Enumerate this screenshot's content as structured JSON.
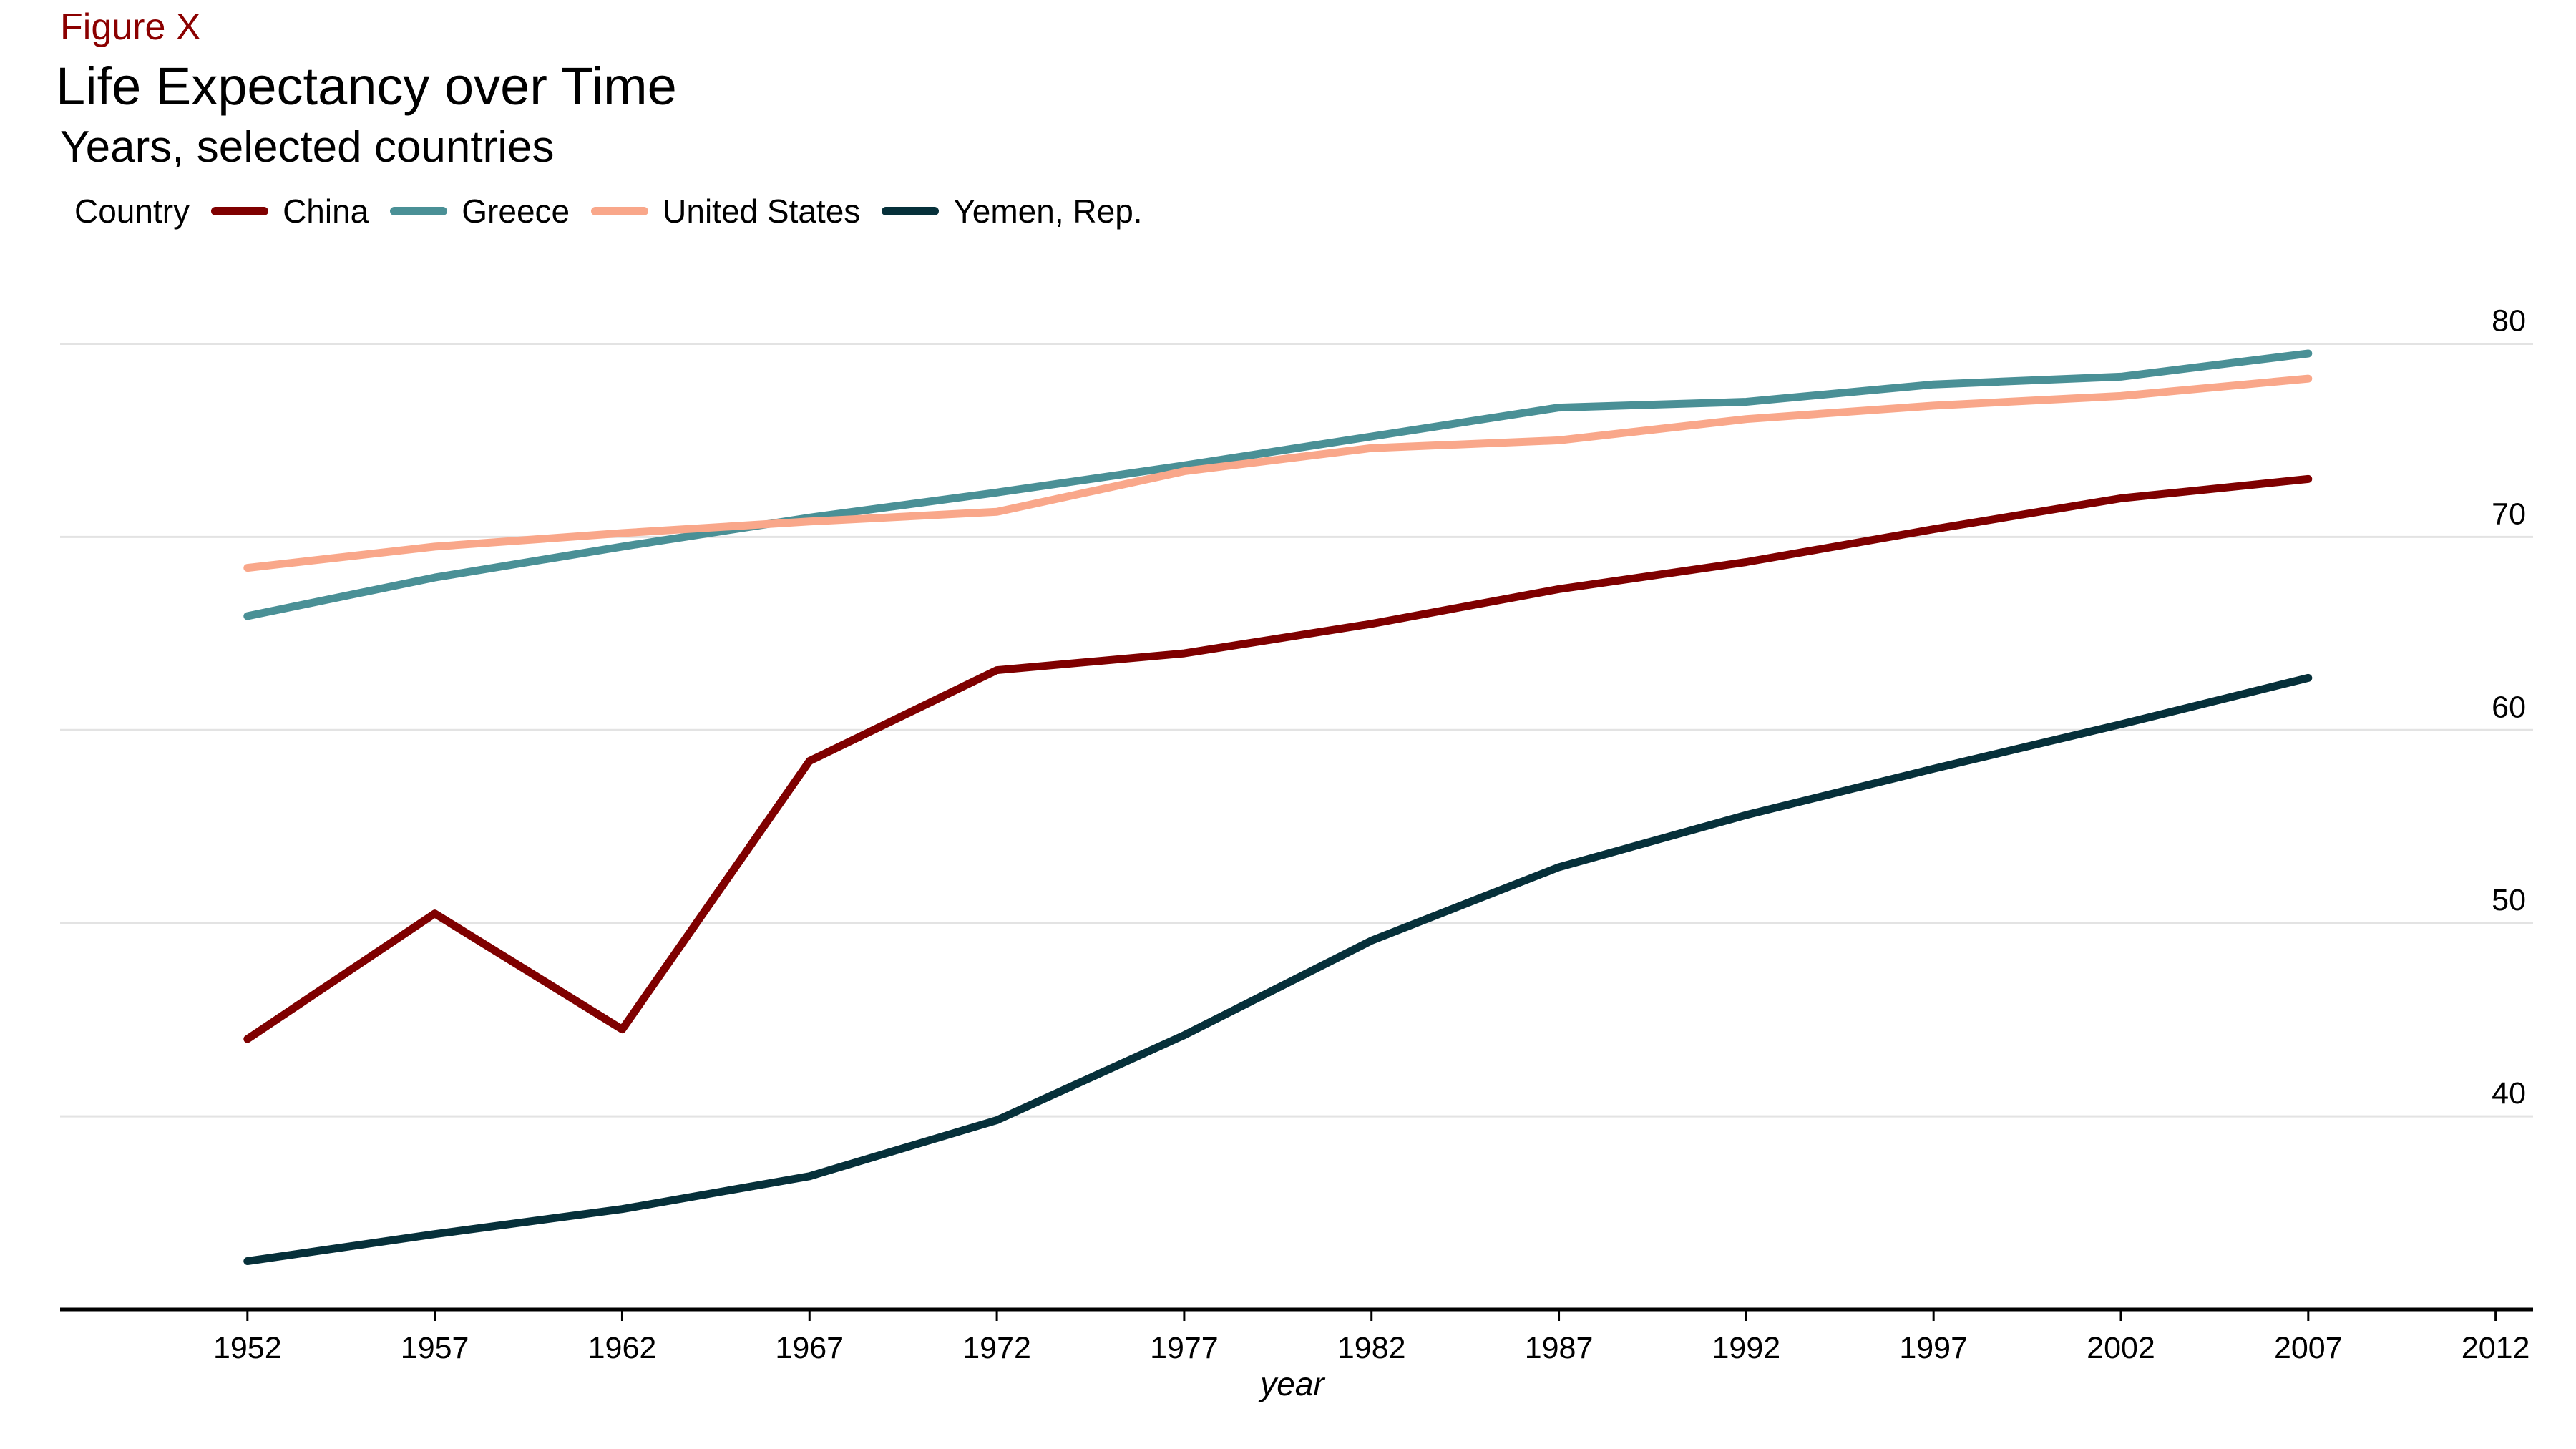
{
  "figure_label": "Figure X",
  "chart_data": {
    "type": "line",
    "title": "Life Expectancy over Time",
    "subtitle": "Years, selected countries",
    "xlabel": "year",
    "ylabel": "",
    "legend_title": "Country",
    "legend_position": "top-left",
    "grid": "horizontal",
    "y_axis_side": "right",
    "x": [
      1952,
      1957,
      1962,
      1967,
      1972,
      1977,
      1982,
      1987,
      1992,
      1997,
      2002,
      2007
    ],
    "x_ticks": [
      1952,
      1957,
      1962,
      1967,
      1972,
      1977,
      1982,
      1987,
      1992,
      1997,
      2002,
      2007,
      2012
    ],
    "y_ticks": [
      40,
      50,
      60,
      70,
      80
    ],
    "xlim": [
      1947,
      2013
    ],
    "ylim": [
      30,
      81.5
    ],
    "series": [
      {
        "name": "China",
        "color": "#7f0000",
        "values": [
          44.0,
          50.5,
          44.5,
          58.4,
          63.1,
          63.97,
          65.5,
          67.3,
          68.7,
          70.4,
          72.0,
          73.0
        ]
      },
      {
        "name": "Greece",
        "color": "#4a9096",
        "values": [
          65.9,
          67.9,
          69.5,
          71.0,
          72.3,
          73.7,
          75.2,
          76.7,
          77.0,
          77.9,
          78.3,
          79.5
        ]
      },
      {
        "name": "United States",
        "color": "#f9a78a",
        "values": [
          68.4,
          69.5,
          70.2,
          70.8,
          71.3,
          73.4,
          74.6,
          75.0,
          76.1,
          76.8,
          77.3,
          78.2
        ]
      },
      {
        "name": "Yemen, Rep.",
        "color": "#06303a",
        "values": [
          32.5,
          33.9,
          35.2,
          36.9,
          39.8,
          44.2,
          49.1,
          52.9,
          55.6,
          58.0,
          60.3,
          62.7
        ]
      }
    ]
  }
}
